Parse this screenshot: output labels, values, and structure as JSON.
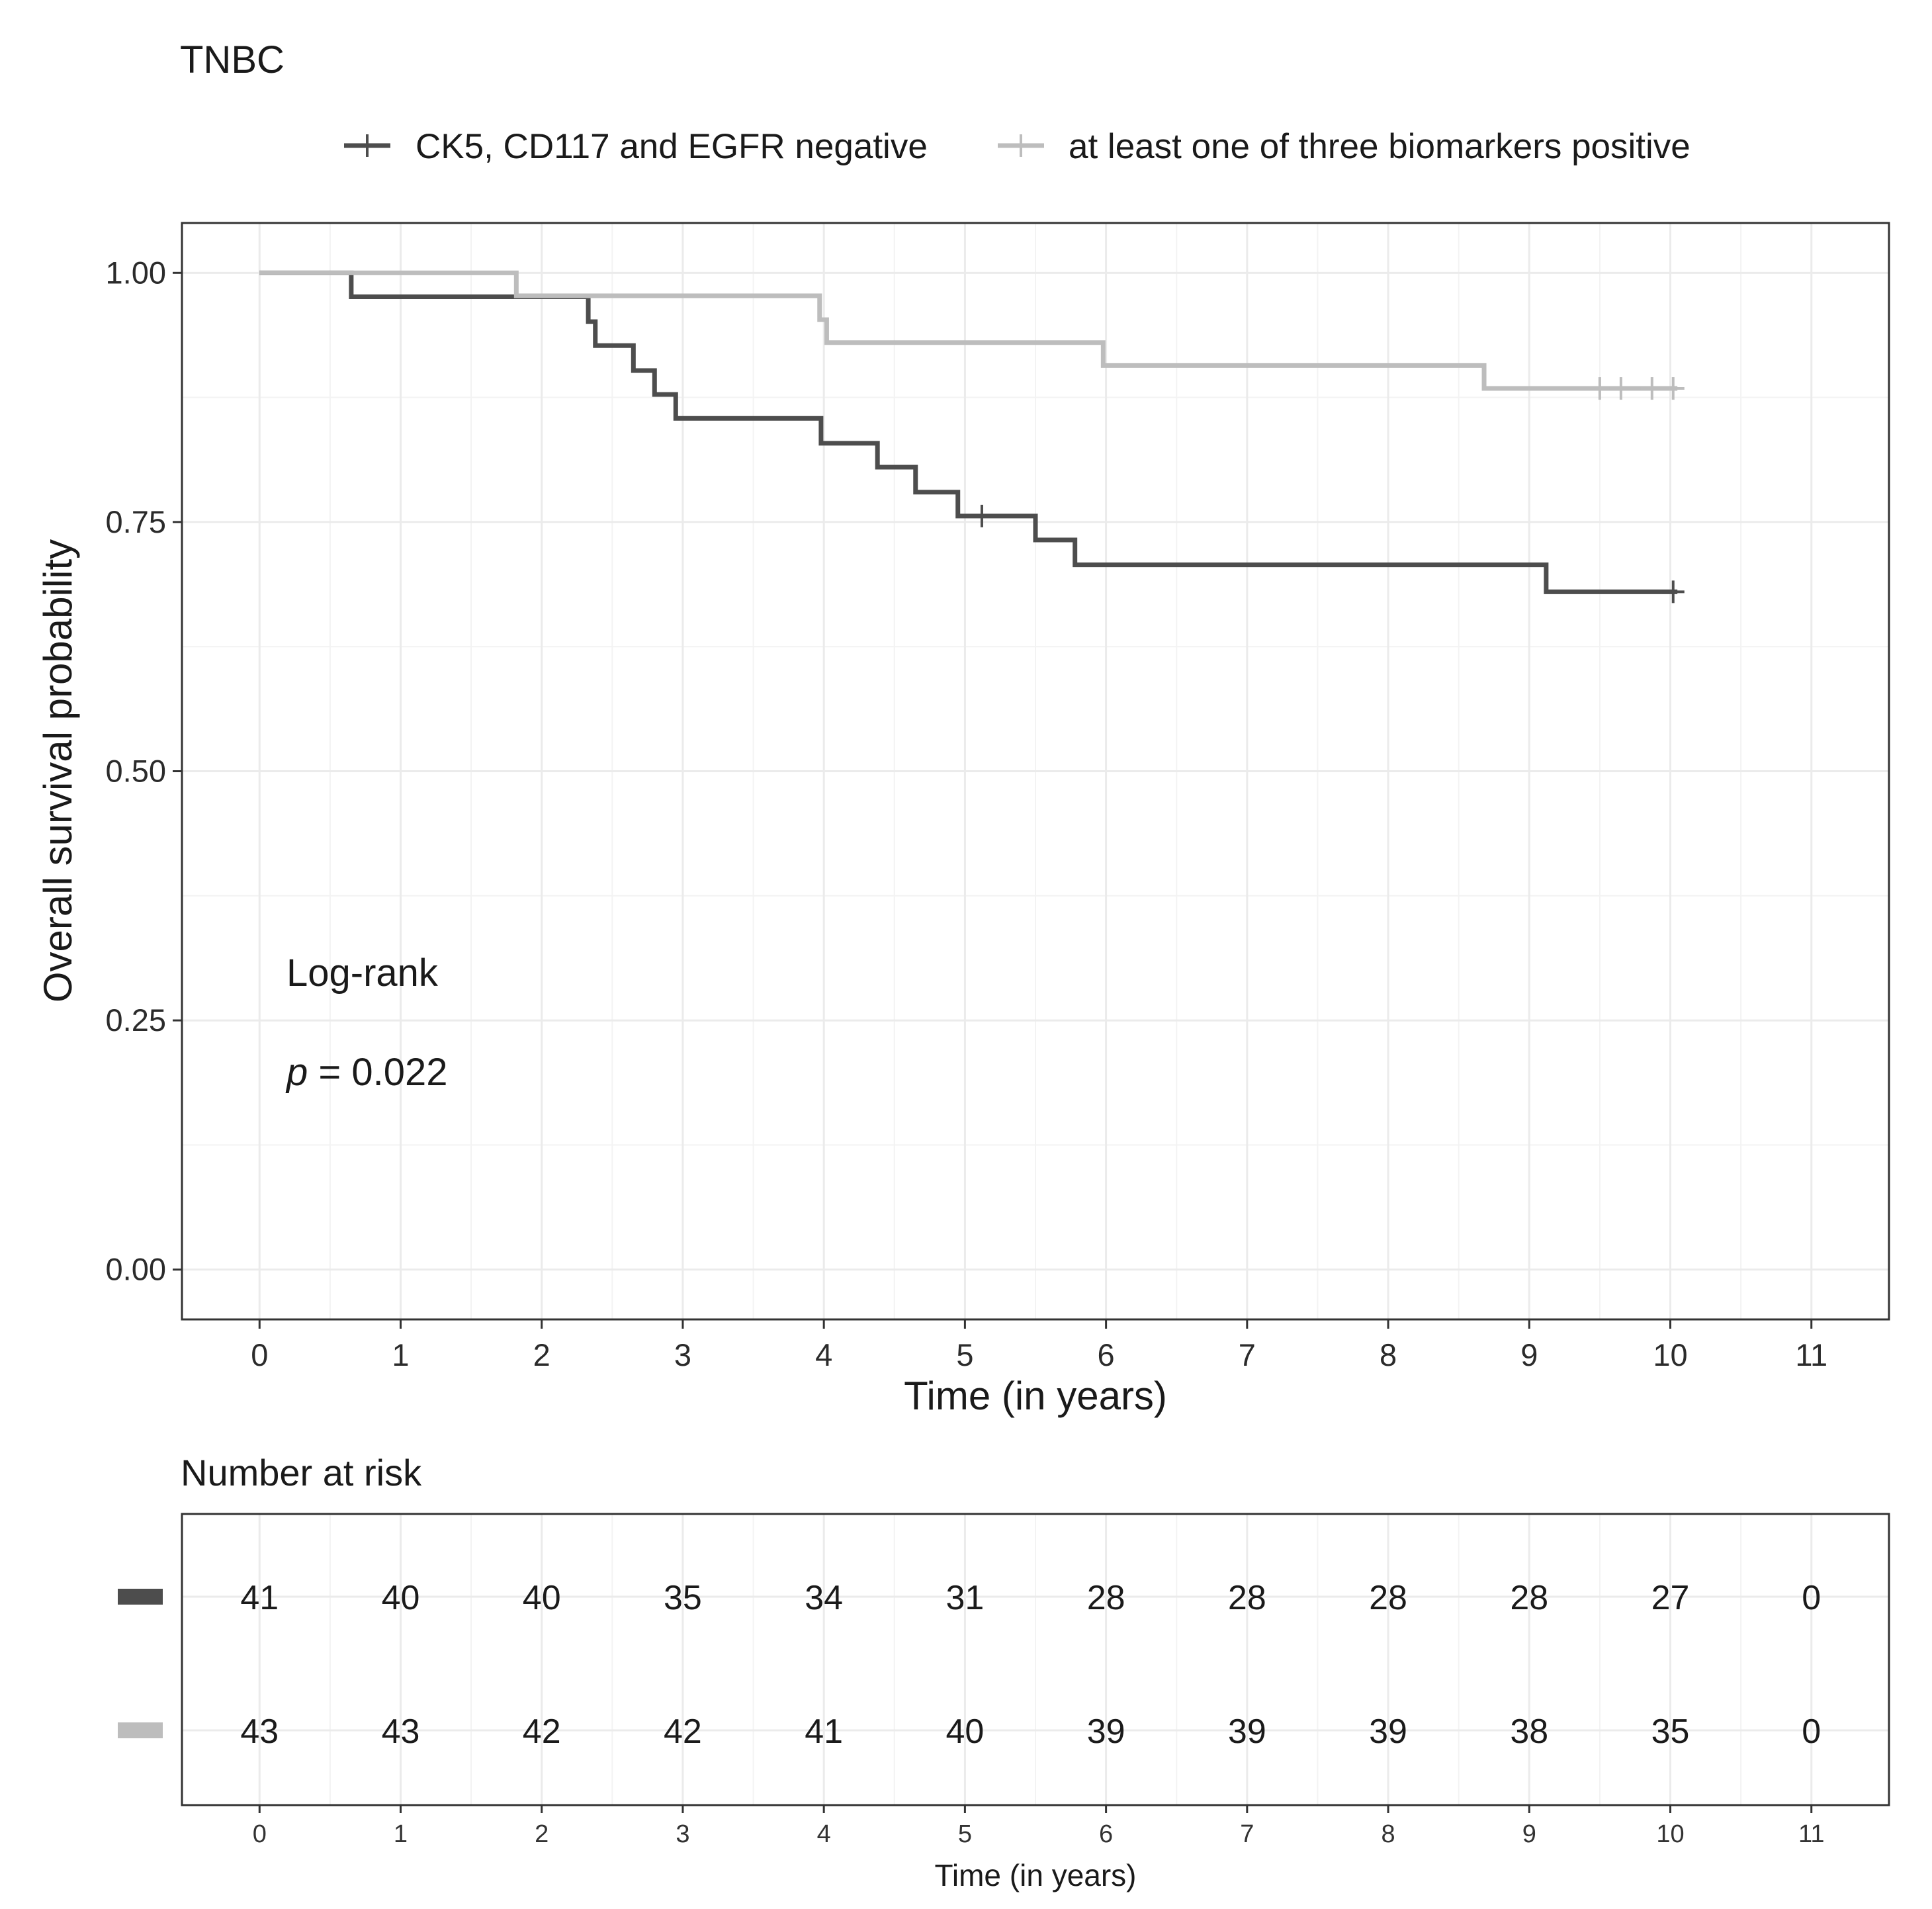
{
  "chart_data": {
    "type": "line",
    "subtype": "kaplan-meier",
    "title": "TNBC",
    "xlabel": "Time (in years)",
    "ylabel": "Overall survival probability",
    "xlim": [
      -0.55,
      11.55
    ],
    "ylim": [
      -0.05,
      1.05
    ],
    "x_ticks": [
      0,
      1,
      2,
      3,
      4,
      5,
      6,
      7,
      8,
      9,
      10,
      11
    ],
    "y_ticks": [
      0.0,
      0.25,
      0.5,
      0.75,
      1.0
    ],
    "y_tick_labels": [
      "0.00",
      "0.25",
      "0.50",
      "0.75",
      "1.00"
    ],
    "grid": true,
    "legend_position": "top",
    "annotation": {
      "line1": "Log-rank",
      "p_symbol": "p",
      "p_rest": " = 0.022"
    },
    "series": [
      {
        "name": "CK5, CD117 and EGFR negative",
        "color": "#4d4d4d",
        "steps": [
          [
            0,
            1.0
          ],
          [
            0.65,
            0.976
          ],
          [
            2.33,
            0.951
          ],
          [
            2.38,
            0.927
          ],
          [
            2.65,
            0.902
          ],
          [
            2.8,
            0.878
          ],
          [
            2.95,
            0.854
          ],
          [
            3.98,
            0.829
          ],
          [
            4.38,
            0.805
          ],
          [
            4.65,
            0.78
          ],
          [
            4.95,
            0.756
          ],
          [
            5.5,
            0.732
          ],
          [
            5.78,
            0.707
          ],
          [
            9.12,
            0.68
          ],
          [
            10.05,
            0.68
          ]
        ],
        "censored": [
          [
            5.12,
            0.756
          ],
          [
            10.02,
            0.68
          ]
        ]
      },
      {
        "name": "at least one of three biomarkers positive",
        "color": "#bdbdbd",
        "steps": [
          [
            0,
            1.0
          ],
          [
            1.82,
            0.977
          ],
          [
            3.97,
            0.953
          ],
          [
            4.02,
            0.93
          ],
          [
            5.98,
            0.907
          ],
          [
            8.68,
            0.884
          ],
          [
            10.05,
            0.884
          ]
        ],
        "censored": [
          [
            9.5,
            0.884
          ],
          [
            9.65,
            0.884
          ],
          [
            9.87,
            0.884
          ],
          [
            10.02,
            0.884
          ]
        ]
      }
    ],
    "risk_table": {
      "title": "Number at risk",
      "xlabel": "Time (in years)",
      "times": [
        0,
        1,
        2,
        3,
        4,
        5,
        6,
        7,
        8,
        9,
        10,
        11
      ],
      "rows": [
        {
          "color": "#4d4d4d",
          "counts": [
            41,
            40,
            40,
            35,
            34,
            31,
            28,
            28,
            28,
            28,
            27,
            0
          ]
        },
        {
          "color": "#bdbdbd",
          "counts": [
            43,
            43,
            42,
            42,
            41,
            40,
            39,
            39,
            39,
            38,
            35,
            0
          ]
        }
      ]
    }
  }
}
